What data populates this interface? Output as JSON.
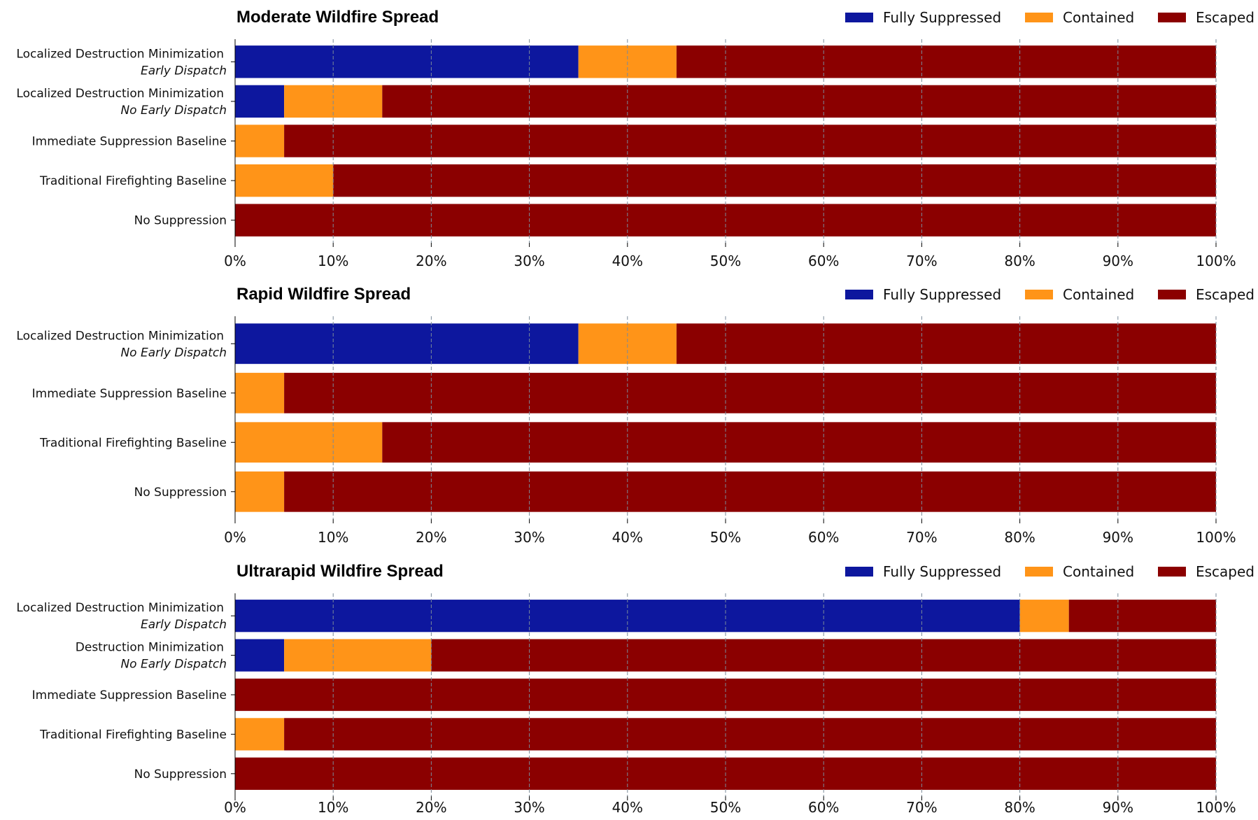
{
  "colors": {
    "Fully Suppressed": "#0d179e",
    "Contained": "#ff9418",
    "Escaped": "#8b0000"
  },
  "chart_data": [
    {
      "type": "bar",
      "orientation": "horizontal",
      "stacked": true,
      "title": "Moderate Wildfire Spread",
      "legend": [
        "Fully Suppressed",
        "Contained",
        "Escaped"
      ],
      "legend_position": "top-right",
      "xlim": [
        0,
        100
      ],
      "xticks": [
        "0%",
        "10%",
        "20%",
        "30%",
        "40%",
        "50%",
        "60%",
        "70%",
        "80%",
        "90%",
        "100%"
      ],
      "grid": "vertical-dashed",
      "categories": [
        {
          "label": "Localized Destruction Minimization",
          "sub": "Early Dispatch"
        },
        {
          "label": "Localized Destruction Minimization",
          "sub": "No Early Dispatch"
        },
        {
          "label": "Immediate Suppression Baseline",
          "sub": ""
        },
        {
          "label": "Traditional Firefighting Baseline",
          "sub": ""
        },
        {
          "label": "No Suppression",
          "sub": ""
        }
      ],
      "series": [
        {
          "name": "Fully Suppressed",
          "values": [
            35,
            5,
            0,
            0,
            0
          ]
        },
        {
          "name": "Contained",
          "values": [
            10,
            10,
            5,
            10,
            0
          ]
        },
        {
          "name": "Escaped",
          "values": [
            55,
            85,
            95,
            90,
            100
          ]
        }
      ]
    },
    {
      "type": "bar",
      "orientation": "horizontal",
      "stacked": true,
      "title": "Rapid Wildfire Spread",
      "legend": [
        "Fully Suppressed",
        "Contained",
        "Escaped"
      ],
      "legend_position": "top-right",
      "xlim": [
        0,
        100
      ],
      "xticks": [
        "0%",
        "10%",
        "20%",
        "30%",
        "40%",
        "50%",
        "60%",
        "70%",
        "80%",
        "90%",
        "100%"
      ],
      "grid": "vertical-dashed",
      "categories": [
        {
          "label": "Localized Destruction Minimization",
          "sub": "No Early Dispatch"
        },
        {
          "label": "Immediate Suppression Baseline",
          "sub": ""
        },
        {
          "label": "Traditional Firefighting Baseline",
          "sub": ""
        },
        {
          "label": "No Suppression",
          "sub": ""
        }
      ],
      "series": [
        {
          "name": "Fully Suppressed",
          "values": [
            35,
            0,
            0,
            0
          ]
        },
        {
          "name": "Contained",
          "values": [
            10,
            5,
            15,
            5
          ]
        },
        {
          "name": "Escaped",
          "values": [
            55,
            95,
            85,
            95
          ]
        }
      ]
    },
    {
      "type": "bar",
      "orientation": "horizontal",
      "stacked": true,
      "title": "Ultrarapid Wildfire Spread",
      "legend": [
        "Fully Suppressed",
        "Contained",
        "Escaped"
      ],
      "legend_position": "top-right",
      "xlim": [
        0,
        100
      ],
      "xticks": [
        "0%",
        "10%",
        "20%",
        "30%",
        "40%",
        "50%",
        "60%",
        "70%",
        "80%",
        "90%",
        "100%"
      ],
      "grid": "vertical-dashed",
      "categories": [
        {
          "label": "Localized Destruction Minimization",
          "sub": "Early Dispatch"
        },
        {
          "label": "Destruction Minimization",
          "sub": "No Early Dispatch"
        },
        {
          "label": "Immediate Suppression Baseline",
          "sub": ""
        },
        {
          "label": "Traditional Firefighting Baseline",
          "sub": ""
        },
        {
          "label": "No Suppression",
          "sub": ""
        }
      ],
      "series": [
        {
          "name": "Fully Suppressed",
          "values": [
            80,
            5,
            0,
            0,
            0
          ]
        },
        {
          "name": "Contained",
          "values": [
            5,
            15,
            0,
            5,
            0
          ]
        },
        {
          "name": "Escaped",
          "values": [
            15,
            80,
            100,
            95,
            100
          ]
        }
      ]
    }
  ]
}
